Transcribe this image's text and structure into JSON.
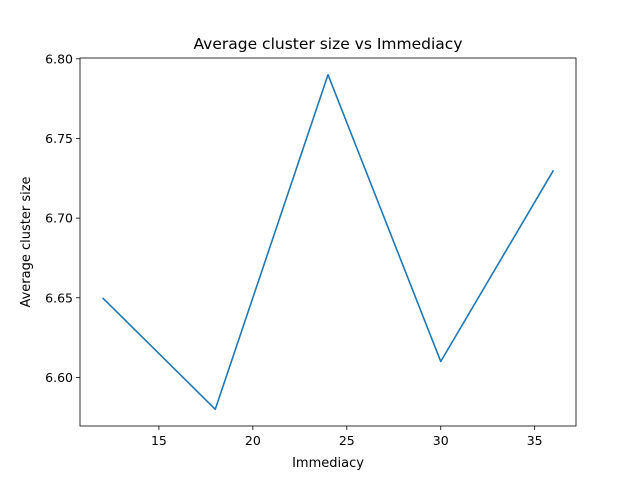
{
  "chart_data": {
    "type": "line",
    "title": "Average cluster size vs Immediacy",
    "xlabel": "Immediacy",
    "ylabel": "Average cluster size",
    "x": [
      12,
      18,
      24,
      30,
      36
    ],
    "series": [
      {
        "values": [
          6.65,
          6.58,
          6.79,
          6.61,
          6.73
        ]
      }
    ],
    "xlim": [
      10.8,
      37.2
    ],
    "ylim": [
      6.5695,
      6.8005
    ],
    "xticks": [
      15,
      20,
      25,
      30,
      35
    ],
    "xtick_labels": [
      "15",
      "20",
      "25",
      "30",
      "35"
    ],
    "yticks": [
      6.6,
      6.65,
      6.7,
      6.75,
      6.8
    ],
    "ytick_labels": [
      "6.60",
      "6.65",
      "6.70",
      "6.75",
      "6.80"
    ],
    "grid": false,
    "line_color": "#1f77b4"
  }
}
